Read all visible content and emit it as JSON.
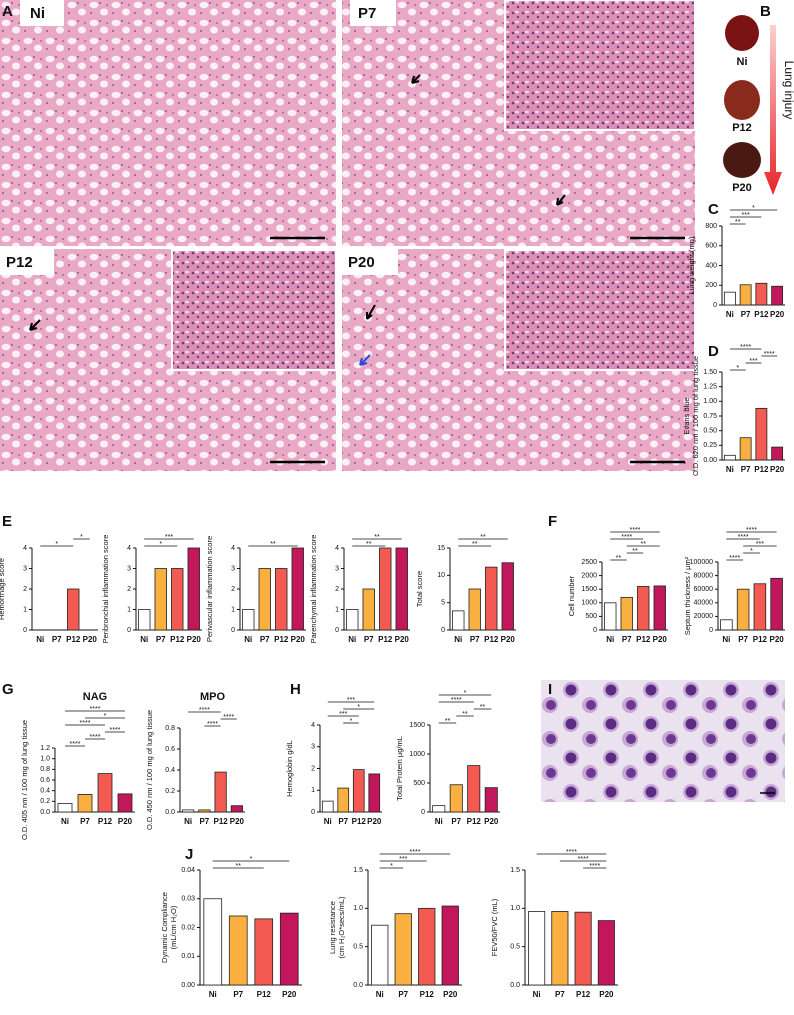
{
  "panel_labels": [
    "A",
    "B",
    "C",
    "D",
    "E",
    "F",
    "G",
    "H",
    "I",
    "J"
  ],
  "images": [
    {
      "label": "Ni"
    },
    {
      "label": "P7"
    },
    {
      "label": "P12"
    },
    {
      "label": "P20"
    }
  ],
  "lungs": [
    "Ni",
    "P12",
    "P20"
  ],
  "lung_arrow_label": "Lung injury",
  "chart_data": [
    {
      "type": "bar",
      "ylabel": "Lung weight (mg)",
      "categories": [
        "Ni",
        "P7",
        "P12",
        "P20"
      ],
      "values": [
        130,
        205,
        220,
        190
      ],
      "colors": [
        "#ffffff",
        "#f9b040",
        "#f25a52",
        "#c2185b"
      ],
      "ylim": [
        0,
        800
      ],
      "yticks": [
        0,
        200,
        400,
        600,
        800
      ],
      "annotations": [
        {
          "label": "**",
          "from": 0,
          "to": 1
        },
        {
          "label": "***",
          "from": 0,
          "to": 2
        },
        {
          "label": "*",
          "from": 0,
          "to": 3
        }
      ]
    },
    {
      "type": "bar",
      "ylabel": [
        "Evans blue",
        "O.D. 620 nm / 100 mg of lung tissue"
      ],
      "categories": [
        "Ni",
        "P7",
        "P12",
        "P20"
      ],
      "values": [
        0.08,
        0.38,
        0.88,
        0.22
      ],
      "colors": [
        "#ffffff",
        "#f9b040",
        "#f25a52",
        "#c2185b"
      ],
      "ylim": [
        0,
        1.5
      ],
      "yticks": [
        {
          "value": 0,
          "label": "0.00"
        },
        {
          "value": 0.25,
          "label": "0.25"
        },
        {
          "value": 0.5,
          "label": "0.50"
        },
        {
          "value": 0.75,
          "label": "0.75"
        },
        {
          "value": 1,
          "label": "1.00"
        },
        {
          "value": 1.25,
          "label": "1.25"
        },
        {
          "value": 1.5,
          "label": "1.50"
        }
      ],
      "annotations": [
        {
          "label": "*",
          "from": 0,
          "to": 1
        },
        {
          "label": "***",
          "from": 1,
          "to": 2
        },
        {
          "label": "****",
          "from": 2,
          "to": 3
        },
        {
          "label": "****",
          "from": 0,
          "to": 2
        }
      ]
    },
    {
      "type": "bar",
      "ylabel": "Hemorrhage score",
      "categories": [
        "Ni",
        "P7",
        "P12",
        "P20"
      ],
      "values": [
        0,
        0,
        2,
        0
      ],
      "colors": [
        "#ffffff",
        "#f9b040",
        "#f25a52",
        "#c2185b"
      ],
      "ylim": [
        0,
        4
      ],
      "yticks": [
        0,
        1,
        2,
        3,
        4
      ],
      "annotations": [
        {
          "label": "*",
          "from": 0,
          "to": 2
        },
        {
          "label": "*",
          "from": 2,
          "to": 3
        }
      ]
    },
    {
      "type": "bar",
      "ylabel": "Peribronchial inflammation score",
      "categories": [
        "Ni",
        "P7",
        "P12",
        "P20"
      ],
      "values": [
        1,
        3,
        3,
        4
      ],
      "colors": [
        "#ffffff",
        "#f9b040",
        "#f25a52",
        "#c2185b"
      ],
      "ylim": [
        0,
        4
      ],
      "yticks": [
        0,
        1,
        2,
        3,
        4
      ],
      "annotations": [
        {
          "label": "*",
          "from": 0,
          "to": 2
        },
        {
          "label": "***",
          "from": 0,
          "to": 3
        }
      ]
    },
    {
      "type": "bar",
      "ylabel": "Perivascular inflammation score",
      "categories": [
        "Ni",
        "P7",
        "P12",
        "P20"
      ],
      "values": [
        1,
        3,
        3,
        4
      ],
      "colors": [
        "#ffffff",
        "#f9b040",
        "#f25a52",
        "#c2185b"
      ],
      "ylim": [
        0,
        4
      ],
      "yticks": [
        0,
        1,
        2,
        3,
        4
      ],
      "annotations": [
        {
          "label": "**",
          "from": 0,
          "to": 3
        }
      ]
    },
    {
      "type": "bar",
      "ylabel": "Parenchymal inflammation score",
      "categories": [
        "Ni",
        "P7",
        "P12",
        "P20"
      ],
      "values": [
        1,
        2,
        4,
        4
      ],
      "colors": [
        "#ffffff",
        "#f9b040",
        "#f25a52",
        "#c2185b"
      ],
      "ylim": [
        0,
        4
      ],
      "yticks": [
        0,
        1,
        2,
        3,
        4
      ],
      "annotations": [
        {
          "label": "**",
          "from": 0,
          "to": 2
        },
        {
          "label": "**",
          "from": 0,
          "to": 3
        }
      ]
    },
    {
      "type": "bar",
      "ylabel": "Total score",
      "categories": [
        "Ni",
        "P7",
        "P12",
        "P20"
      ],
      "values": [
        3.5,
        7.5,
        11.5,
        12.3
      ],
      "colors": [
        "#ffffff",
        "#f9b040",
        "#f25a52",
        "#c2185b"
      ],
      "ylim": [
        0,
        15
      ],
      "yticks": [
        0,
        5,
        10,
        15
      ],
      "annotations": [
        {
          "label": "**",
          "from": 0,
          "to": 2
        },
        {
          "label": "**",
          "from": 0,
          "to": 3
        }
      ]
    },
    {
      "type": "bar",
      "ylabel": "Cell number",
      "categories": [
        "Ni",
        "P7",
        "P12",
        "P20"
      ],
      "values": [
        1000,
        1200,
        1600,
        1620
      ],
      "colors": [
        "#ffffff",
        "#f9b040",
        "#f25a52",
        "#c2185b"
      ],
      "ylim": [
        0,
        2500
      ],
      "yticks": [
        0,
        500,
        1000,
        1500,
        2000,
        2500
      ],
      "annotations": [
        {
          "label": "**",
          "from": 0,
          "to": 1
        },
        {
          "label": "**",
          "from": 1,
          "to": 2
        },
        {
          "label": "**",
          "from": 1,
          "to": 3
        },
        {
          "label": "****",
          "from": 0,
          "to": 2
        },
        {
          "label": "****",
          "from": 0,
          "to": 3
        }
      ]
    },
    {
      "type": "bar",
      "ylabel": "Septum thickness / µm²",
      "categories": [
        "Ni",
        "P7",
        "P12",
        "P20"
      ],
      "values": [
        15000,
        60000,
        68000,
        76000
      ],
      "colors": [
        "#ffffff",
        "#f9b040",
        "#f25a52",
        "#c2185b"
      ],
      "ylim": [
        0,
        100000
      ],
      "yticks": [
        0,
        20000,
        40000,
        60000,
        80000,
        100000
      ],
      "annotations": [
        {
          "label": "****",
          "from": 0,
          "to": 1
        },
        {
          "label": "*",
          "from": 1,
          "to": 2
        },
        {
          "label": "***",
          "from": 1,
          "to": 3
        },
        {
          "label": "****",
          "from": 0,
          "to": 2
        },
        {
          "label": "****",
          "from": 0,
          "to": 3
        }
      ]
    },
    {
      "type": "bar",
      "title": "NAG",
      "ylabel": "O.D. 405 nm / 100 mg of lung tissue",
      "categories": [
        "Ni",
        "P7",
        "P12",
        "P20"
      ],
      "values": [
        0.16,
        0.33,
        0.72,
        0.34
      ],
      "colors": [
        "#ffffff",
        "#f9b040",
        "#f25a52",
        "#c2185b"
      ],
      "ylim": [
        0,
        1.2
      ],
      "yticks": [
        {
          "value": 0,
          "label": "0.0"
        },
        {
          "value": 0.2,
          "label": "0.2"
        },
        {
          "value": 0.4,
          "label": "0.4"
        },
        {
          "value": 0.6,
          "label": "0.6"
        },
        {
          "value": 0.8,
          "label": "0.8"
        },
        {
          "value": 1,
          "label": "1.0"
        },
        {
          "value": 1.2,
          "label": "1.2"
        }
      ],
      "annotations": [
        {
          "label": "****",
          "from": 0,
          "to": 1
        },
        {
          "label": "****",
          "from": 1,
          "to": 2
        },
        {
          "label": "****",
          "from": 2,
          "to": 3
        },
        {
          "label": "****",
          "from": 0,
          "to": 2
        },
        {
          "label": "*",
          "from": 1,
          "to": 3
        },
        {
          "label": "****",
          "from": 0,
          "to": 3
        }
      ]
    },
    {
      "type": "bar",
      "title": "MPO",
      "ylabel": "O.D. 450 nm / 100 mg of lung tissue",
      "categories": [
        "Ni",
        "P7",
        "P12",
        "P20"
      ],
      "values": [
        0.02,
        0.02,
        0.38,
        0.06
      ],
      "colors": [
        "#ffffff",
        "#f9b040",
        "#f25a52",
        "#c2185b"
      ],
      "ylim": [
        0,
        0.8
      ],
      "yticks": [
        {
          "value": 0,
          "label": "0.0"
        },
        {
          "value": 0.2,
          "label": "0.2"
        },
        {
          "value": 0.4,
          "label": "0.4"
        },
        {
          "value": 0.6,
          "label": "0.6"
        },
        {
          "value": 0.8,
          "label": "0.8"
        }
      ],
      "annotations": [
        {
          "label": "****",
          "from": 1,
          "to": 2
        },
        {
          "label": "****",
          "from": 2,
          "to": 3
        },
        {
          "label": "****",
          "from": 0,
          "to": 2
        }
      ]
    },
    {
      "type": "bar",
      "ylabel": "Hemoglobin g/dL",
      "categories": [
        "Ni",
        "P7",
        "P12",
        "P20"
      ],
      "values": [
        0.5,
        1.1,
        1.95,
        1.75
      ],
      "colors": [
        "#ffffff",
        "#f9b040",
        "#f25a52",
        "#c2185b"
      ],
      "ylim": [
        0,
        4
      ],
      "yticks": [
        0,
        1,
        2,
        3,
        4
      ],
      "annotations": [
        {
          "label": "*",
          "from": 1,
          "to": 2
        },
        {
          "label": "***",
          "from": 0,
          "to": 2
        },
        {
          "label": "*",
          "from": 1,
          "to": 3
        },
        {
          "label": "***",
          "from": 0,
          "to": 3
        }
      ]
    },
    {
      "type": "bar",
      "ylabel": "Total Protein µg/mL",
      "categories": [
        "Ni",
        "P7",
        "P12",
        "P20"
      ],
      "values": [
        110,
        470,
        800,
        420
      ],
      "colors": [
        "#ffffff",
        "#f9b040",
        "#f25a52",
        "#c2185b"
      ],
      "ylim": [
        0,
        1500
      ],
      "yticks": [
        0,
        500,
        1000,
        1500
      ],
      "annotations": [
        {
          "label": "**",
          "from": 0,
          "to": 1
        },
        {
          "label": "**",
          "from": 1,
          "to": 2
        },
        {
          "label": "**",
          "from": 2,
          "to": 3
        },
        {
          "label": "****",
          "from": 0,
          "to": 2
        },
        {
          "label": "*",
          "from": 0,
          "to": 3
        }
      ]
    },
    {
      "type": "bar",
      "ylabel": [
        "Dynamic Compliance",
        "(mL/cm H₂O)"
      ],
      "categories": [
        "Ni",
        "P7",
        "P12",
        "P20"
      ],
      "values": [
        0.03,
        0.024,
        0.023,
        0.025
      ],
      "colors": [
        "#ffffff",
        "#f9b040",
        "#f25a52",
        "#c2185b"
      ],
      "ylim": [
        0,
        0.04
      ],
      "yticks": [
        {
          "value": 0,
          "label": "0.00"
        },
        {
          "value": 0.01,
          "label": "0.01"
        },
        {
          "value": 0.02,
          "label": "0.02"
        },
        {
          "value": 0.03,
          "label": "0.03"
        },
        {
          "value": 0.04,
          "label": "0.04"
        }
      ],
      "annotations": [
        {
          "label": "**",
          "from": 0,
          "to": 2
        },
        {
          "label": "*",
          "from": 0,
          "to": 3
        }
      ]
    },
    {
      "type": "bar",
      "ylabel": [
        "Lung resistance",
        "(cm H₂O*secs/mL)"
      ],
      "categories": [
        "Ni",
        "P7",
        "P12",
        "P20"
      ],
      "values": [
        0.78,
        0.93,
        1.0,
        1.03
      ],
      "colors": [
        "#ffffff",
        "#f9b040",
        "#f25a52",
        "#c2185b"
      ],
      "ylim": [
        0,
        1.5
      ],
      "yticks": [
        {
          "value": 0,
          "label": "0.0"
        },
        {
          "value": 0.5,
          "label": "0.5"
        },
        {
          "value": 1,
          "label": "1.0"
        },
        {
          "value": 1.5,
          "label": "1.5"
        }
      ],
      "annotations": [
        {
          "label": "*",
          "from": 0,
          "to": 1
        },
        {
          "label": "***",
          "from": 0,
          "to": 2
        },
        {
          "label": "****",
          "from": 0,
          "to": 3
        }
      ]
    },
    {
      "type": "bar",
      "ylabel": "FEV50/FVC (mL)",
      "categories": [
        "Ni",
        "P7",
        "P12",
        "P20"
      ],
      "values": [
        0.96,
        0.96,
        0.95,
        0.84
      ],
      "colors": [
        "#ffffff",
        "#f9b040",
        "#f25a52",
        "#c2185b"
      ],
      "ylim": [
        0,
        1.5
      ],
      "yticks": [
        {
          "value": 0,
          "label": "0.0"
        },
        {
          "value": 0.5,
          "label": "0.5"
        },
        {
          "value": 1,
          "label": "1.0"
        },
        {
          "value": 1.5,
          "label": "1.5"
        }
      ],
      "annotations": [
        {
          "label": "****",
          "from": 2,
          "to": 3
        },
        {
          "label": "****",
          "from": 1,
          "to": 3
        },
        {
          "label": "****",
          "from": 0,
          "to": 3
        }
      ]
    }
  ]
}
